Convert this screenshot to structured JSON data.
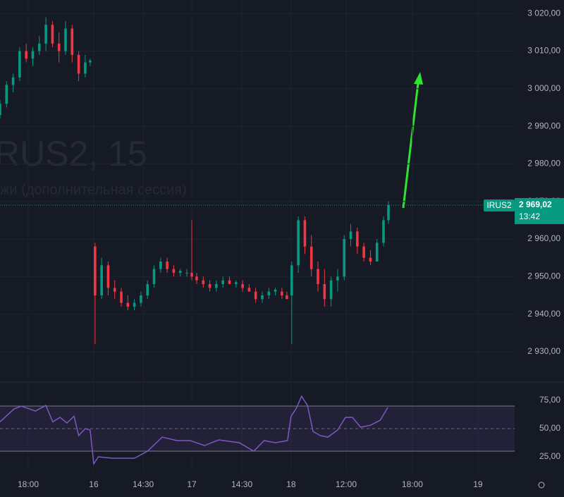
{
  "chart_data": [
    {
      "type": "candlestick",
      "watermark": [
        "RUS2, 15",
        "жи (дополнительная сессия)"
      ],
      "up_color": "#089981",
      "down_color": "#f23645",
      "xlim": [
        0,
        157
      ],
      "ylim": [
        2922.3,
        3023.6
      ],
      "yticks": [
        {
          "value": 2930,
          "label": "2 930,00"
        },
        {
          "value": 2940,
          "label": "2 940,00"
        },
        {
          "value": 2950,
          "label": "2 950,00"
        },
        {
          "value": 2960,
          "label": "2 960,00"
        },
        {
          "value": 2970,
          "label": "2 970,00"
        },
        {
          "value": 2980,
          "label": "2 980,00"
        },
        {
          "value": 2990,
          "label": "2 990,00"
        },
        {
          "value": 3000,
          "label": "3 000,00"
        },
        {
          "value": 3010,
          "label": "3 010,00"
        },
        {
          "value": 3020,
          "label": "3 020,00"
        }
      ],
      "grid": true,
      "x": [
        0,
        2,
        4,
        6,
        8,
        10,
        12,
        14,
        16,
        18,
        20,
        22,
        24,
        26,
        27.5,
        29,
        31,
        33,
        35,
        37,
        39,
        41,
        43,
        45,
        47,
        49,
        51,
        53,
        55,
        57,
        58.5,
        60,
        62,
        64,
        66,
        68,
        70,
        72,
        74,
        76,
        78,
        80,
        82,
        84,
        86,
        87.5,
        89,
        91,
        93,
        95,
        97,
        99,
        101,
        103,
        105,
        107,
        109,
        111,
        113,
        115,
        117,
        118.5
      ],
      "open": [
        2993,
        2996,
        3001,
        3003,
        3010,
        3008,
        3010,
        3012,
        3017,
        3012,
        3010,
        3016,
        3009,
        3004,
        3007,
        2958,
        2945,
        2953,
        2947,
        2946,
        2943,
        2942,
        2943,
        2945,
        2948,
        2952,
        2954,
        2952,
        2951,
        2951,
        2951,
        2950,
        2949,
        2948,
        2947,
        2948,
        2949,
        2948,
        2948,
        2947,
        2946,
        2944,
        2945,
        2946,
        2946,
        2945,
        2945,
        2953,
        2965,
        2958,
        2952,
        2948,
        2944,
        2949,
        2950,
        2960,
        2962,
        2958,
        2955,
        2954,
        2959,
        2965
      ],
      "high": [
        2997,
        3002,
        3004,
        3011,
        3012,
        3011,
        3014,
        3019,
        3018,
        3015,
        3018,
        3017,
        3010,
        3009,
        3008,
        2959,
        2955,
        2954,
        2949,
        2947,
        2945,
        2944,
        2946,
        2949,
        2953,
        2955,
        2955,
        2953,
        2952,
        2952,
        2965,
        2951,
        2950,
        2949,
        2949,
        2950,
        2950,
        2949,
        2949,
        2948,
        2947,
        2946,
        2947,
        2947,
        2947,
        2946,
        2954,
        2966,
        2966,
        2961,
        2954,
        2952,
        2950,
        2952,
        2961,
        2964,
        2963,
        2959,
        2957,
        2960,
        2966,
        2970
      ],
      "low": [
        2992,
        2995,
        2999,
        3002,
        3007,
        3006,
        3009,
        3010,
        3011,
        3007,
        3009,
        3007,
        3002,
        3003,
        3006,
        2932,
        2944,
        2945,
        2944,
        2942,
        2941,
        2941,
        2942,
        2944,
        2947,
        2951,
        2951,
        2950,
        2950,
        2950,
        2949,
        2948,
        2947,
        2946,
        2946,
        2947,
        2948,
        2947,
        2946,
        2946,
        2943,
        2943,
        2944,
        2945,
        2944,
        2944,
        2932,
        2951,
        2956,
        2950,
        2946,
        2942,
        2942,
        2946,
        2949,
        2958,
        2956,
        2954,
        2953,
        2954,
        2958,
        2964
      ],
      "close": [
        2996,
        3001,
        3003,
        3010,
        3008,
        3010,
        3012,
        3017,
        3012,
        3010,
        3016,
        3009,
        3004,
        3007,
        3007.5,
        2945,
        2953,
        2947,
        2946,
        2943,
        2942,
        2943,
        2945,
        2948,
        2952,
        2954,
        2952,
        2951,
        2951.5,
        2951,
        2950,
        2949,
        2948,
        2947,
        2948,
        2949,
        2948,
        2948.5,
        2947,
        2946,
        2944,
        2945,
        2946,
        2946.5,
        2945,
        2944,
        2953,
        2965,
        2958,
        2952,
        2948,
        2944,
        2949,
        2950,
        2960,
        2962,
        2958,
        2955,
        2954,
        2959,
        2965,
        2969.02
      ],
      "last_price": {
        "name": "IRUS2",
        "value": 2969.02,
        "label": "2 969,02",
        "time": "13:42",
        "color": "#089981"
      }
    },
    {
      "type": "line",
      "xlim": [
        0,
        157
      ],
      "ylim": [
        11.25,
        89.4
      ],
      "yticks": [
        {
          "value": 25,
          "label": "25,00"
        },
        {
          "value": 50,
          "label": "50,00"
        },
        {
          "value": 75,
          "label": "75,00"
        }
      ],
      "band": [
        30,
        70
      ],
      "color": "#7e57c2",
      "x": [
        0,
        4.3,
        6.5,
        10.8,
        14,
        16.1,
        18.3,
        20.4,
        22.6,
        24,
        26,
        27.5,
        28.6,
        30,
        34.4,
        41,
        45,
        49.5,
        54,
        58,
        62.4,
        66.7,
        73,
        77.4,
        80.6,
        84,
        87.7,
        88.8,
        90.3,
        92,
        93.8,
        95.5,
        97.8,
        100,
        103,
        105.4,
        107.5,
        110,
        113,
        116,
        118.3
      ],
      "values": [
        56,
        67.5,
        70,
        65.6,
        70.6,
        56,
        60,
        55,
        61,
        43.8,
        50,
        48.8,
        18.75,
        25,
        23.75,
        23.75,
        30,
        42.5,
        39.4,
        39.4,
        35,
        40,
        37.5,
        30,
        39.4,
        37.5,
        39.4,
        61,
        67.5,
        78.75,
        70.6,
        47.5,
        43.75,
        42.5,
        48.75,
        60,
        60,
        51.25,
        53,
        57.5,
        68.75
      ],
      "xticks": [
        {
          "value": 8.6,
          "label": "18:00"
        },
        {
          "value": 28.6,
          "label": "16"
        },
        {
          "value": 43.7,
          "label": "14:30"
        },
        {
          "value": 58.5,
          "label": "17"
        },
        {
          "value": 73.8,
          "label": "14:30"
        },
        {
          "value": 88.8,
          "label": "18"
        },
        {
          "value": 105.6,
          "label": "12:00"
        },
        {
          "value": 125.8,
          "label": "18:00"
        },
        {
          "value": 145.8,
          "label": "19"
        }
      ]
    }
  ]
}
